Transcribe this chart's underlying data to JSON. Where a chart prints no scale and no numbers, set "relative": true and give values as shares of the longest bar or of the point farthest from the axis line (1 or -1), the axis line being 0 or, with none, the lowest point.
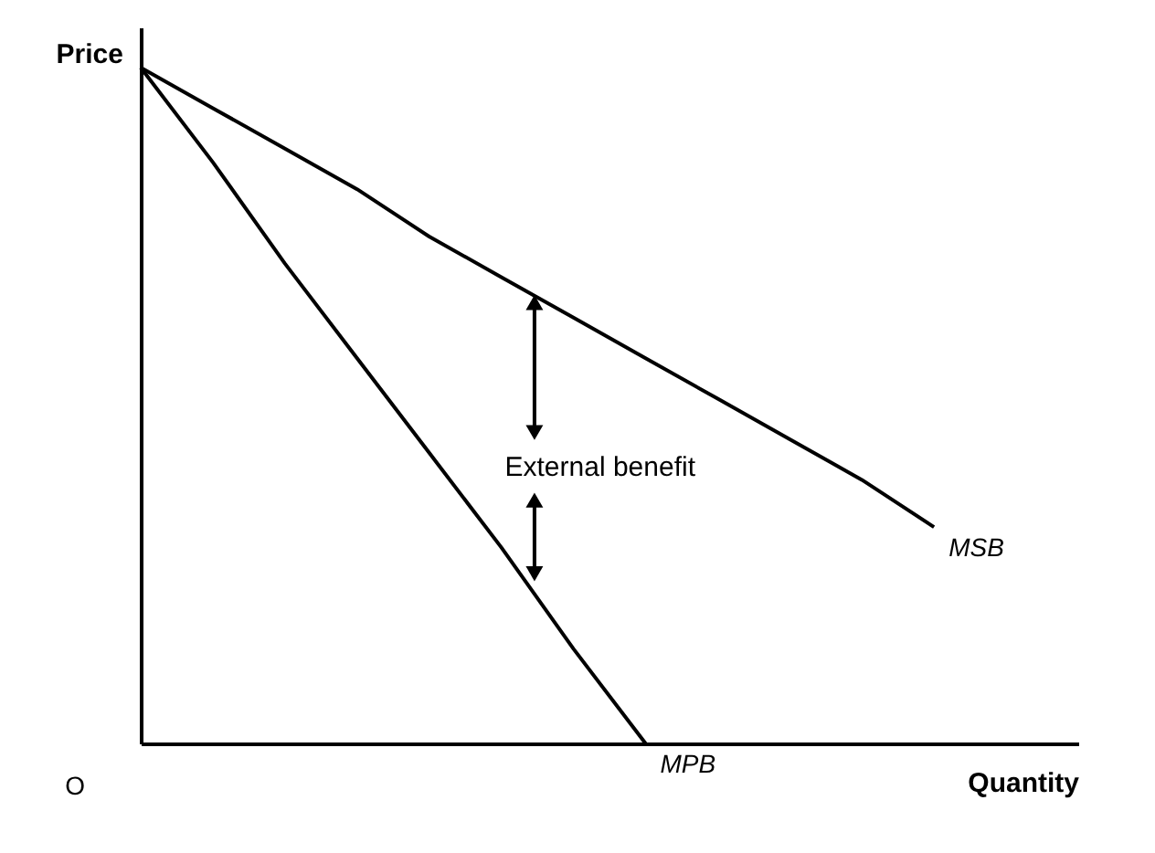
{
  "chart_data": {
    "type": "line",
    "relative": true,
    "xlabel": "Quantity",
    "ylabel": "Price",
    "categories": [
      null,
      null,
      null,
      null,
      null,
      null,
      null,
      null,
      null,
      null,
      null,
      null,
      null,
      null
    ],
    "series": [
      {
        "name": "MSB",
        "color": "#000000",
        "values": [
          1,
          0.94,
          0.88,
          0.82,
          0.75,
          0.69,
          0.63,
          0.57,
          0.51,
          0.45,
          0.39,
          0.32,
          null,
          null
        ]
      },
      {
        "name": "MPB",
        "color": "#000000",
        "values": [
          1,
          0.86,
          0.71,
          0.57,
          0.43,
          0.29,
          0.14,
          0,
          null,
          null,
          null,
          null,
          null,
          null
        ]
      }
    ],
    "annotations": [
      "External benefit",
      "O"
    ]
  }
}
